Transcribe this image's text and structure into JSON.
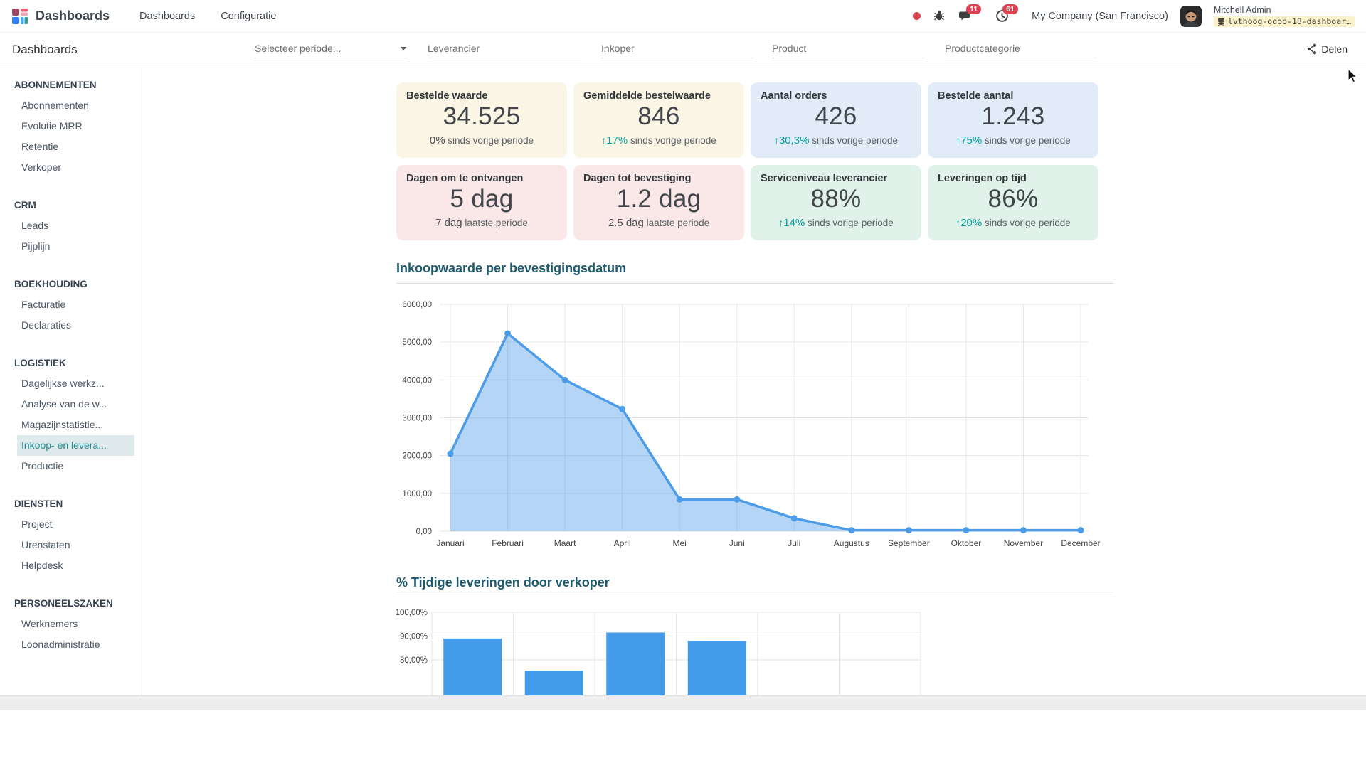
{
  "navbar": {
    "app_name": "Dashboards",
    "menu_items": [
      "Dashboards",
      "Configuratie"
    ],
    "badges": {
      "messages": "11",
      "activities": "61"
    },
    "company": "My Company (San Francisco)",
    "user_name": "Mitchell Admin",
    "database": "lvthoog-odoo-18-dashboar…"
  },
  "control_panel": {
    "page_title": "Dashboards",
    "filters": [
      {
        "placeholder": "Selecteer periode...",
        "has_caret": true
      },
      {
        "placeholder": "Leverancier"
      },
      {
        "placeholder": "Inkoper"
      },
      {
        "placeholder": "Product"
      },
      {
        "placeholder": "Productcategorie"
      }
    ],
    "share_label": "Delen"
  },
  "sidebar": {
    "sections": [
      {
        "title": "ABONNEMENTEN",
        "items": [
          "Abonnementen",
          "Evolutie MRR",
          "Retentie",
          "Verkoper"
        ]
      },
      {
        "title": "CRM",
        "items": [
          "Leads",
          "Pijplijn"
        ]
      },
      {
        "title": "BOEKHOUDING",
        "items": [
          "Facturatie",
          "Declaraties"
        ]
      },
      {
        "title": "LOGISTIEK",
        "items": [
          "Dagelijkse werkz...",
          "Analyse van de w...",
          "Magazijnstatistie...",
          "Inkoop- en levera...",
          "Productie"
        ],
        "selected": "Inkoop- en levera..."
      },
      {
        "title": "DIENSTEN",
        "items": [
          "Project",
          "Urenstaten",
          "Helpdesk"
        ]
      },
      {
        "title": "PERSONEELSZAKEN",
        "items": [
          "Werknemers",
          "Loonadministratie"
        ]
      }
    ]
  },
  "kpi_cards": [
    {
      "title": "Bestelde waarde",
      "value": "34.525",
      "delta": "0%",
      "delta_colored": false,
      "rest": "sinds vorige periode",
      "bg": "#faf5e4"
    },
    {
      "title": "Gemiddelde bestelwaarde",
      "value": "846",
      "arrow": "↑",
      "delta": "17%",
      "delta_colored": true,
      "rest": "sinds vorige periode",
      "bg": "#faf5e4"
    },
    {
      "title": "Aantal orders",
      "value": "426",
      "arrow": "↑",
      "delta": "30,3%",
      "delta_colored": true,
      "rest": "sinds vorige periode",
      "bg": "#e1ecf8"
    },
    {
      "title": "Bestelde aantal",
      "value": "1.243",
      "arrow": "↑",
      "delta": "75%",
      "delta_colored": true,
      "rest": "sinds vorige periode",
      "bg": "#e1ecf8"
    },
    {
      "title": "Dagen om te ontvangen",
      "value": "5 dag",
      "delta": "7 dag",
      "delta_colored": false,
      "rest": "laatste periode",
      "bg": "#f9e8e7"
    },
    {
      "title": "Dagen tot bevestiging",
      "value": "1.2 dag",
      "delta": "2.5 dag",
      "delta_colored": false,
      "rest": "laatste periode",
      "bg": "#f9e8e7"
    },
    {
      "title": "Serviceniveau leverancier",
      "value": "88%",
      "arrow": "↑",
      "delta": "14%",
      "delta_colored": true,
      "rest": "sinds vorige periode",
      "bg": "#e0f2e9"
    },
    {
      "title": "Leveringen op tijd",
      "value": "86%",
      "arrow": "↑",
      "delta": "20%",
      "delta_colored": true,
      "rest": "sinds vorige periode",
      "bg": "#e0f2e9"
    }
  ],
  "chart_data": [
    {
      "type": "area",
      "title": "Inkoopwaarde per bevestigingsdatum",
      "x_labels": [
        "Januari",
        "Februari",
        "Maart",
        "April",
        "Mei",
        "Juni",
        "Juli",
        "Augustus",
        "September",
        "Oktober",
        "November",
        "December"
      ],
      "values": [
        2050,
        5230,
        4000,
        3230,
        840,
        840,
        340,
        25,
        25,
        25,
        25,
        25
      ],
      "ylim": [
        0,
        6000
      ],
      "ytick_labels": [
        "6000,00",
        "5000,00",
        "4000,00",
        "3000,00",
        "2000,00",
        "1000,00",
        "0,00"
      ],
      "grid": true,
      "legend": "none",
      "line_color": "#4d9ce8"
    },
    {
      "type": "bar",
      "title": "% Tijdige leveringen door verkoper",
      "categories": [
        "",
        "",
        "",
        ""
      ],
      "values": [
        89,
        75.5,
        91.5,
        88
      ],
      "ytick_labels": [
        "100,00%",
        "90,00%",
        "80,00%"
      ],
      "yticks": [
        100,
        90,
        80
      ],
      "ylim_top": 100,
      "grid": true,
      "legend": "none",
      "bar_color": "#449be9",
      "clipped_bottom": true
    }
  ],
  "colors": {
    "accent_teal": "#1b8e96",
    "positive_delta": "#00a09d",
    "badge_red": "#d9424e",
    "chart_blue": "#4d9ce8",
    "chart_title": "#1e5a6e"
  }
}
